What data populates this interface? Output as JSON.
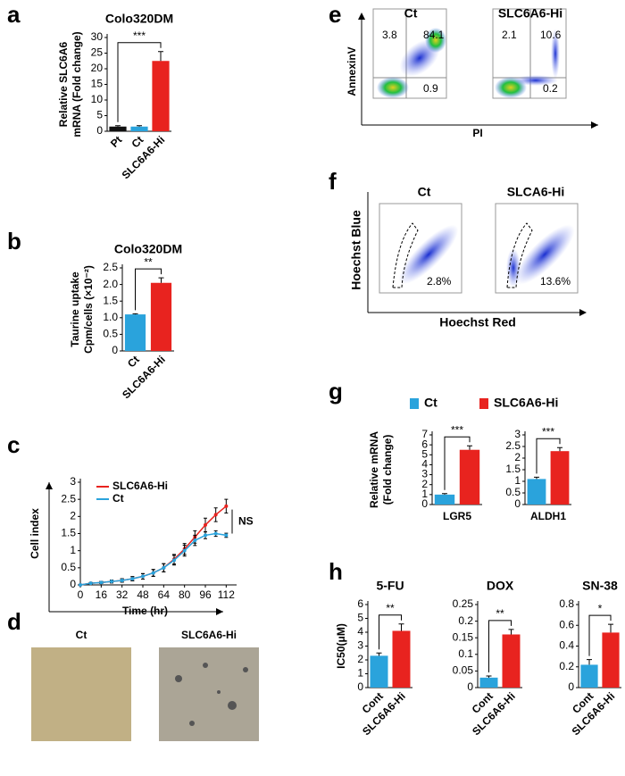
{
  "panel_labels": [
    "a",
    "b",
    "c",
    "d",
    "e",
    "f",
    "g",
    "h"
  ],
  "images": {
    "labels": [
      "Ct",
      "SLC6A6-Hi"
    ]
  },
  "flow_apoptosis": {
    "titles": [
      "Ct",
      "SLC6A6-Hi"
    ],
    "quadrants": [
      [
        "3.8",
        "84.1",
        "0.9"
      ],
      [
        "2.1",
        "10.6",
        "0.2"
      ]
    ],
    "xlabel": "PI",
    "ylabel": "AnnexinV"
  },
  "flow_side_population": {
    "titles": [
      "Ct",
      "SLCA6-Hi"
    ],
    "percents": [
      "2.8%",
      "13.6%"
    ],
    "xlabel": "Hoechst Red",
    "ylabel": "Hoechst Blue"
  },
  "chart_data": [
    {
      "type": "bar",
      "title": "Colo320DM",
      "ylabel": [
        "Relative SLC6A6",
        "mRNA (Fold change)"
      ],
      "categories": [
        "Pt",
        "Ct",
        "SLC6A6-Hi"
      ],
      "values": [
        1.5,
        1.5,
        22.5
      ],
      "errors": [
        0.3,
        0.3,
        3
      ],
      "colors": [
        "#111111",
        "#2aa3dc",
        "#e8231f"
      ],
      "ylim": [
        0,
        30
      ],
      "yticks": [
        0,
        5,
        10,
        15,
        20,
        25,
        30
      ],
      "annotation": "***"
    },
    {
      "type": "bar",
      "title": "Colo320DM",
      "ylabel": [
        "Taurine uptake",
        "Cpm/cells (×10⁻²)"
      ],
      "categories": [
        "Ct",
        "SLC6A6-Hi"
      ],
      "values": [
        1.1,
        2.05
      ],
      "errors": [
        0.02,
        0.15
      ],
      "colors": [
        "#2aa3dc",
        "#e8231f"
      ],
      "ylim": [
        0,
        2.5
      ],
      "yticks": [
        0,
        0.5,
        {
          "value": 1,
          "label": "1.0"
        },
        1.5,
        {
          "value": 2,
          "label": "2.0"
        },
        2.5
      ],
      "annotation": "**"
    },
    {
      "type": "line",
      "xlabel": "Time (hr)",
      "ylabel": [
        "Cell index"
      ],
      "x": [
        0,
        8,
        16,
        24,
        32,
        40,
        48,
        56,
        64,
        72,
        80,
        88,
        96,
        104,
        112
      ],
      "xlim": [
        0,
        120
      ],
      "xticks": [
        0,
        16,
        32,
        48,
        64,
        80,
        96,
        112
      ],
      "ylim": [
        0,
        3
      ],
      "yticks": [
        0,
        0.5,
        1,
        1.5,
        2,
        2.5,
        3
      ],
      "annotation": "NS",
      "series": [
        {
          "name": "SLC6A6-Hi",
          "color": "#e8231f",
          "values": [
            0,
            0.05,
            0.07,
            0.1,
            0.13,
            0.18,
            0.25,
            0.35,
            0.5,
            0.75,
            1.05,
            1.4,
            1.75,
            2.05,
            2.3
          ],
          "errors": [
            0,
            0.02,
            0.03,
            0.04,
            0.05,
            0.06,
            0.08,
            0.1,
            0.12,
            0.14,
            0.16,
            0.18,
            0.2,
            0.2,
            0.2
          ]
        },
        {
          "name": "Ct",
          "color": "#2aa3dc",
          "values": [
            0,
            0.05,
            0.07,
            0.1,
            0.13,
            0.18,
            0.25,
            0.35,
            0.5,
            0.72,
            1.0,
            1.3,
            1.45,
            1.5,
            1.45
          ],
          "errors": [
            0,
            0.02,
            0.03,
            0.04,
            0.05,
            0.06,
            0.08,
            0.1,
            0.12,
            0.14,
            0.16,
            0.15,
            0.1,
            0.08,
            0.06
          ]
        }
      ]
    },
    {
      "type": "bar",
      "xlabel": "LGR5",
      "ylabel": [
        "Relative mRNA",
        "(Fold change)"
      ],
      "legend": true,
      "series": [
        {
          "name": "Ct",
          "color": "#2aa3dc",
          "values": [
            1
          ],
          "errors": [
            0.1
          ]
        },
        {
          "name": "SLC6A6-Hi",
          "color": "#e8231f",
          "values": [
            5.5
          ],
          "errors": [
            0.4
          ]
        }
      ],
      "ylim": [
        0,
        7
      ],
      "yticks": [
        0,
        1,
        2,
        3,
        4,
        5,
        6,
        7
      ],
      "annotation": "***"
    },
    {
      "type": "bar",
      "xlabel": "ALDH1",
      "series": [
        {
          "color": "#2aa3dc",
          "values": [
            1.1
          ],
          "errors": [
            0.08
          ]
        },
        {
          "color": "#e8231f",
          "values": [
            2.3
          ],
          "errors": [
            0.15
          ]
        }
      ],
      "ylim": [
        0,
        3
      ],
      "yticks": [
        0,
        0.5,
        1,
        1.5,
        2,
        2.5,
        3
      ],
      "annotation": "***"
    },
    {
      "type": "bar",
      "title": "5-FU",
      "ylabel": [
        "IC50(μM)"
      ],
      "categories": [
        "Cont",
        "SLC6A6-Hi"
      ],
      "values": [
        2.3,
        4.1
      ],
      "errors": [
        0.2,
        0.5
      ],
      "colors": [
        "#2aa3dc",
        "#e8231f"
      ],
      "ylim": [
        0,
        6
      ],
      "yticks": [
        0,
        1,
        2,
        3,
        4,
        5,
        6
      ],
      "annotation": "**"
    },
    {
      "type": "bar",
      "title": "DOX",
      "categories": [
        "Cont",
        "SLC6A6-Hi"
      ],
      "values": [
        0.03,
        0.16
      ],
      "errors": [
        0.005,
        0.015
      ],
      "colors": [
        "#2aa3dc",
        "#e8231f"
      ],
      "ylim": [
        0,
        0.25
      ],
      "yticks": [
        0,
        0.05,
        0.1,
        0.15,
        0.2,
        0.25
      ],
      "annotation": "**"
    },
    {
      "type": "bar",
      "title": "SN-38",
      "categories": [
        "Cont",
        "SLC6A6-Hi"
      ],
      "values": [
        0.22,
        0.53
      ],
      "errors": [
        0.05,
        0.08
      ],
      "colors": [
        "#2aa3dc",
        "#e8231f"
      ],
      "ylim": [
        0,
        0.8
      ],
      "yticks": [
        0,
        0.2,
        0.4,
        0.6,
        0.8
      ],
      "annotation": "*"
    }
  ]
}
